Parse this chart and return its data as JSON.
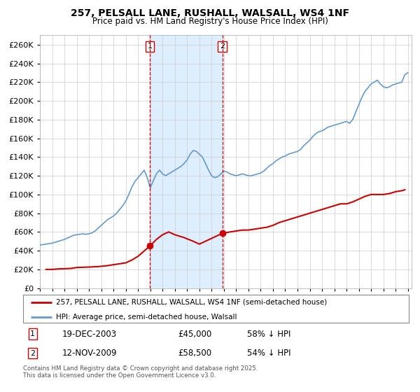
{
  "title": "257, PELSALL LANE, RUSHALL, WALSALL, WS4 1NF",
  "subtitle": "Price paid vs. HM Land Registry's House Price Index (HPI)",
  "legend_line1": "257, PELSALL LANE, RUSHALL, WALSALL, WS4 1NF (semi-detached house)",
  "legend_line2": "HPI: Average price, semi-detached house, Walsall",
  "footnote": "Contains HM Land Registry data © Crown copyright and database right 2025.\nThis data is licensed under the Open Government Licence v3.0.",
  "sale1_date": "19-DEC-2003",
  "sale1_price": "£45,000",
  "sale1_hpi": "58% ↓ HPI",
  "sale1_year": 2003.97,
  "sale1_value": 45000,
  "sale2_date": "12-NOV-2009",
  "sale2_price": "£58,500",
  "sale2_hpi": "54% ↓ HPI",
  "sale2_year": 2009.87,
  "sale2_value": 58500,
  "red_color": "#cc0000",
  "blue_color": "#6699cc",
  "shading_color": "#ddeeff",
  "grid_color": "#cccccc",
  "ylim": [
    0,
    270000
  ],
  "yticks": [
    0,
    20000,
    40000,
    60000,
    80000,
    100000,
    120000,
    140000,
    160000,
    180000,
    200000,
    220000,
    240000,
    260000
  ],
  "hpi_data": {
    "years": [
      1995.0,
      1995.25,
      1995.5,
      1995.75,
      1996.0,
      1996.25,
      1996.5,
      1996.75,
      1997.0,
      1997.25,
      1997.5,
      1997.75,
      1998.0,
      1998.25,
      1998.5,
      1998.75,
      1999.0,
      1999.25,
      1999.5,
      1999.75,
      2000.0,
      2000.25,
      2000.5,
      2000.75,
      2001.0,
      2001.25,
      2001.5,
      2001.75,
      2002.0,
      2002.25,
      2002.5,
      2002.75,
      2003.0,
      2003.25,
      2003.5,
      2003.75,
      2004.0,
      2004.25,
      2004.5,
      2004.75,
      2005.0,
      2005.25,
      2005.5,
      2005.75,
      2006.0,
      2006.25,
      2006.5,
      2006.75,
      2007.0,
      2007.25,
      2007.5,
      2007.75,
      2008.0,
      2008.25,
      2008.5,
      2008.75,
      2009.0,
      2009.25,
      2009.5,
      2009.75,
      2010.0,
      2010.25,
      2010.5,
      2010.75,
      2011.0,
      2011.25,
      2011.5,
      2011.75,
      2012.0,
      2012.25,
      2012.5,
      2012.75,
      2013.0,
      2013.25,
      2013.5,
      2013.75,
      2014.0,
      2014.25,
      2014.5,
      2014.75,
      2015.0,
      2015.25,
      2015.5,
      2015.75,
      2016.0,
      2016.25,
      2016.5,
      2016.75,
      2017.0,
      2017.25,
      2017.5,
      2017.75,
      2018.0,
      2018.25,
      2018.5,
      2018.75,
      2019.0,
      2019.25,
      2019.5,
      2019.75,
      2020.0,
      2020.25,
      2020.5,
      2020.75,
      2021.0,
      2021.25,
      2021.5,
      2021.75,
      2022.0,
      2022.25,
      2022.5,
      2022.75,
      2023.0,
      2023.25,
      2023.5,
      2023.75,
      2024.0,
      2024.25,
      2024.5,
      2024.75,
      2025.0
    ],
    "values": [
      46000,
      46500,
      47000,
      47500,
      48000,
      49000,
      50000,
      51000,
      52000,
      53500,
      55000,
      56500,
      57000,
      57500,
      58000,
      57500,
      58000,
      59000,
      61000,
      64000,
      67000,
      70000,
      73000,
      75000,
      77000,
      80000,
      84000,
      88000,
      93000,
      100000,
      108000,
      114000,
      118000,
      122000,
      126000,
      118000,
      107000,
      115000,
      122000,
      126000,
      122000,
      120000,
      122000,
      124000,
      126000,
      128000,
      130000,
      133000,
      137000,
      143000,
      147000,
      146000,
      143000,
      140000,
      133000,
      126000,
      120000,
      118000,
      119000,
      122000,
      125000,
      124000,
      122000,
      121000,
      120000,
      121000,
      122000,
      121000,
      120000,
      120000,
      121000,
      122000,
      123000,
      125000,
      128000,
      131000,
      133000,
      136000,
      138000,
      140000,
      141000,
      143000,
      144000,
      145000,
      146000,
      148000,
      152000,
      155000,
      158000,
      162000,
      165000,
      167000,
      168000,
      170000,
      172000,
      173000,
      174000,
      175000,
      176000,
      177000,
      178000,
      176000,
      180000,
      188000,
      196000,
      204000,
      210000,
      214000,
      218000,
      220000,
      222000,
      218000,
      215000,
      214000,
      215000,
      217000,
      218000,
      219000,
      220000,
      228000,
      230000
    ]
  },
  "price_data": {
    "years": [
      1995.5,
      1996.0,
      1996.5,
      1997.5,
      1998.0,
      1999.0,
      1999.75,
      2000.5,
      2001.0,
      2002.0,
      2002.5,
      2003.0,
      2003.97,
      2004.5,
      2005.0,
      2005.5,
      2006.0,
      2006.75,
      2007.5,
      2008.0,
      2009.87,
      2010.5,
      2011.0,
      2011.5,
      2012.0,
      2012.5,
      2013.0,
      2013.5,
      2014.0,
      2014.5,
      2015.0,
      2015.5,
      2016.0,
      2016.5,
      2017.0,
      2017.5,
      2018.0,
      2018.5,
      2019.0,
      2019.5,
      2020.0,
      2020.5,
      2021.0,
      2021.5,
      2022.0,
      2022.5,
      2023.0,
      2023.5,
      2024.0,
      2024.5,
      2024.75
    ],
    "values": [
      20000,
      20000,
      20500,
      21000,
      22000,
      22500,
      23000,
      24000,
      25000,
      27000,
      30000,
      34000,
      45000,
      52000,
      57000,
      60000,
      57000,
      54000,
      50000,
      47000,
      58500,
      60000,
      61000,
      62000,
      62000,
      63000,
      64000,
      65000,
      67000,
      70000,
      72000,
      74000,
      76000,
      78000,
      80000,
      82000,
      84000,
      86000,
      88000,
      90000,
      90000,
      92000,
      95000,
      98000,
      100000,
      100000,
      100000,
      101000,
      103000,
      104000,
      105000
    ]
  }
}
